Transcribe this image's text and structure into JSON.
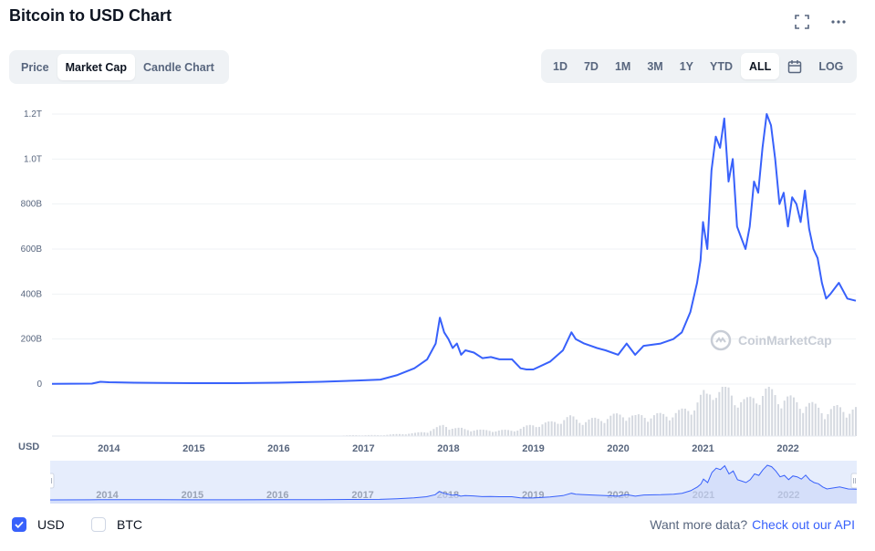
{
  "header": {
    "title": "Bitcoin to USD Chart"
  },
  "tabs": [
    {
      "label": "Price",
      "active": false
    },
    {
      "label": "Market Cap",
      "active": true
    },
    {
      "label": "Candle Chart",
      "active": false
    }
  ],
  "ranges": [
    {
      "label": "1D",
      "active": false
    },
    {
      "label": "7D",
      "active": false
    },
    {
      "label": "1M",
      "active": false
    },
    {
      "label": "3M",
      "active": false
    },
    {
      "label": "1Y",
      "active": false
    },
    {
      "label": "YTD",
      "active": false
    },
    {
      "label": "ALL",
      "active": true
    }
  ],
  "log_label": "LOG",
  "watermark": "CoinMarketCap",
  "currency_axis_label": "USD",
  "legend": {
    "usd_label": "USD",
    "btc_label": "BTC",
    "usd_checked": true,
    "btc_checked": false
  },
  "api_note": {
    "text": "Want more data?",
    "link": "Check out our API"
  },
  "colors": {
    "line": "#3861fb",
    "volume": "#d5d9e0",
    "navigator_fill": "#e6edfc"
  },
  "chart_data": {
    "type": "line",
    "title": "Bitcoin to USD Chart",
    "xlabel": "",
    "ylabel": "",
    "y_tick_labels": [
      "0",
      "200B",
      "400B",
      "600B",
      "800B",
      "1.0T",
      "1.2T"
    ],
    "y_tick_values": [
      0,
      200,
      400,
      600,
      800,
      1000,
      1200
    ],
    "ylim": [
      0,
      1200
    ],
    "x_tick_labels": [
      "2014",
      "2015",
      "2016",
      "2017",
      "2018",
      "2019",
      "2020",
      "2021",
      "2022"
    ],
    "x_tick_values": [
      2014,
      2015,
      2016,
      2017,
      2018,
      2019,
      2020,
      2021,
      2022
    ],
    "xlim": [
      2013.33,
      2022.8
    ],
    "grid": true,
    "series": [
      {
        "x": [
          2013.33,
          2013.8,
          2013.9,
          2014.0,
          2014.3,
          2014.6,
          2015.0,
          2015.5,
          2016.0,
          2016.5,
          2016.9,
          2017.2,
          2017.4,
          2017.6,
          2017.75,
          2017.85,
          2017.9,
          2017.95,
          2018.0,
          2018.05,
          2018.1,
          2018.15,
          2018.2,
          2018.3,
          2018.4,
          2018.5,
          2018.6,
          2018.75,
          2018.85,
          2018.92,
          2019.0,
          2019.2,
          2019.35,
          2019.45,
          2019.5,
          2019.6,
          2019.75,
          2019.85,
          2020.0,
          2020.1,
          2020.2,
          2020.3,
          2020.5,
          2020.65,
          2020.75,
          2020.85,
          2020.93,
          2020.97,
          2021.0,
          2021.05,
          2021.1,
          2021.15,
          2021.2,
          2021.25,
          2021.3,
          2021.35,
          2021.4,
          2021.45,
          2021.5,
          2021.55,
          2021.6,
          2021.65,
          2021.7,
          2021.75,
          2021.8,
          2021.85,
          2021.9,
          2021.95,
          2022.0,
          2022.05,
          2022.1,
          2022.15,
          2022.2,
          2022.25,
          2022.3,
          2022.35,
          2022.4,
          2022.45,
          2022.5,
          2022.6,
          2022.7,
          2022.8
        ],
        "y": [
          1,
          2,
          10,
          8,
          6,
          5,
          4,
          4,
          6,
          10,
          15,
          20,
          40,
          70,
          110,
          180,
          295,
          230,
          200,
          160,
          180,
          130,
          150,
          140,
          115,
          120,
          110,
          110,
          70,
          65,
          65,
          100,
          150,
          230,
          200,
          180,
          160,
          150,
          130,
          180,
          130,
          170,
          180,
          200,
          230,
          320,
          450,
          550,
          720,
          600,
          950,
          1100,
          1050,
          1180,
          900,
          1000,
          700,
          650,
          600,
          700,
          900,
          850,
          1050,
          1200,
          1150,
          1000,
          800,
          850,
          700,
          830,
          800,
          720,
          860,
          690,
          600,
          560,
          450,
          380,
          400,
          450,
          380,
          370
        ],
        "name": ""
      }
    ],
    "volume_relative": [
      0,
      0,
      0,
      0,
      0,
      0,
      0,
      0,
      0,
      0,
      1,
      1,
      2,
      3,
      5,
      8,
      10,
      12,
      10,
      9,
      8,
      8,
      7,
      7,
      6,
      6,
      6,
      6,
      8,
      10,
      12,
      14,
      18,
      20,
      18,
      16,
      18,
      20,
      22,
      24,
      20,
      22,
      22,
      24,
      26,
      30,
      36,
      40,
      44,
      42,
      50,
      52,
      48,
      54,
      48,
      44,
      40,
      38,
      36,
      38,
      42,
      44,
      46,
      48,
      46,
      44,
      40,
      42,
      40,
      38,
      36,
      34,
      36,
      34,
      32,
      30,
      28,
      26,
      28,
      30,
      28,
      28
    ]
  }
}
